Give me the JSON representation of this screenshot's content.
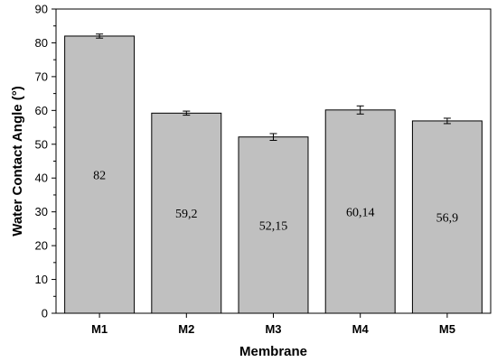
{
  "chart_data": {
    "type": "bar",
    "categories": [
      "M1",
      "M2",
      "M3",
      "M4",
      "M5"
    ],
    "values": [
      82,
      59.2,
      52.15,
      60.14,
      56.9
    ],
    "errors": [
      0.6,
      0.6,
      1.0,
      1.2,
      0.8
    ],
    "data_labels": [
      "82",
      "59,2",
      "52,15",
      "60,14",
      "56,9"
    ],
    "title": "",
    "xlabel": "Membrane",
    "ylabel": "Water Contact Angle (°)",
    "ylim": [
      0,
      90
    ],
    "yticks": [
      0,
      10,
      20,
      30,
      40,
      50,
      60,
      70,
      80,
      90
    ],
    "grid": false,
    "bar_color": "#c0c0c0",
    "edge_color": "#000000"
  }
}
